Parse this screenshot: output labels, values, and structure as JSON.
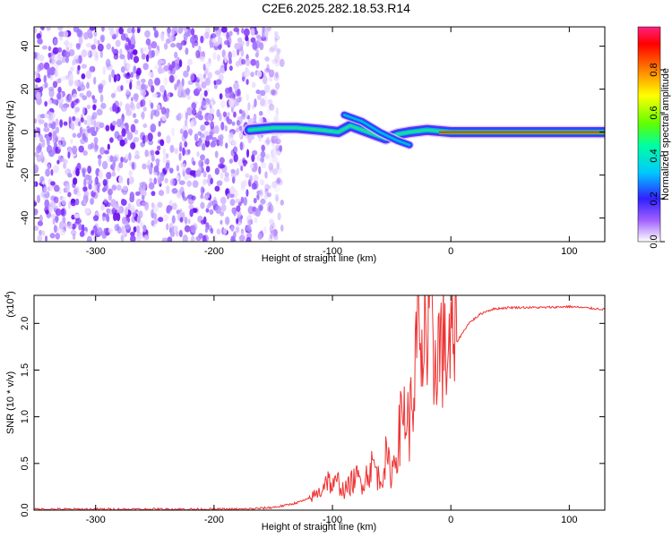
{
  "title": "C2E6.2025.282.18.53.R14",
  "colors": {
    "line": "#ee3333",
    "axis": "#000000",
    "background": "#ffffff"
  },
  "chart_data": [
    {
      "type": "heatmap",
      "name": "spectrogram",
      "xlabel": "Height of straight line (km)",
      "ylabel": "Frequency (Hz)",
      "xlim": [
        -352,
        130
      ],
      "ylim": [
        -51,
        49
      ],
      "xticks": [
        -300,
        -200,
        -100,
        0,
        100
      ],
      "xtick_labels": [
        "-300",
        "-200",
        "-100",
        "0",
        "100"
      ],
      "yticks": [
        -40,
        -20,
        0,
        20,
        40
      ],
      "ytick_labels": [
        "-40",
        "-20",
        "0",
        "20",
        "40"
      ],
      "noise_region_km": [
        -352,
        -150
      ],
      "signal_trace": [
        [
          -170,
          1
        ],
        [
          -150,
          2
        ],
        [
          -130,
          2
        ],
        [
          -110,
          1
        ],
        [
          -95,
          0
        ],
        [
          -85,
          3
        ],
        [
          -70,
          0
        ],
        [
          -55,
          -3
        ],
        [
          -45,
          -1
        ],
        [
          -35,
          0
        ],
        [
          -20,
          1
        ],
        [
          0,
          0
        ],
        [
          50,
          0
        ],
        [
          130,
          0
        ]
      ],
      "branch_trace": [
        [
          -90,
          8
        ],
        [
          -75,
          5
        ],
        [
          -60,
          0
        ],
        [
          -45,
          -4
        ],
        [
          -35,
          -6
        ]
      ],
      "colorbar": {
        "label": "Normalized spectral amplitude",
        "range": [
          0,
          1
        ],
        "ticks": [
          0.0,
          0.2,
          0.4,
          0.6,
          0.8
        ],
        "tick_labels": [
          "0.0",
          "0.2",
          "0.4",
          "0.6",
          "0.8"
        ]
      }
    },
    {
      "type": "line",
      "name": "snr",
      "xlabel": "Height of straight line (km)",
      "ylabel": "SNR (10 * v/v)",
      "multiplier_label": "(x10",
      "multiplier_exponent": "4",
      "multiplier_close": ")",
      "xlim": [
        -352,
        130
      ],
      "ylim": [
        0,
        2.3
      ],
      "xticks": [
        -300,
        -200,
        -100,
        0,
        100
      ],
      "xtick_labels": [
        "-300",
        "-200",
        "-100",
        "0",
        "100"
      ],
      "yticks": [
        0.0,
        0.5,
        1.0,
        1.5,
        2.0
      ],
      "ytick_labels": [
        "0.0",
        "0.5",
        "1.0",
        "1.5",
        "2.0"
      ],
      "x": [
        -352,
        -300,
        -250,
        -200,
        -175,
        -160,
        -150,
        -140,
        -130,
        -120,
        -110,
        -105,
        -100,
        -95,
        -90,
        -85,
        -80,
        -75,
        -70,
        -65,
        -60,
        -55,
        -50,
        -45,
        -40,
        -35,
        -30,
        -27,
        -25,
        -22,
        -20,
        -17,
        -15,
        -12,
        -10,
        -7,
        -5,
        -2,
        0,
        5,
        10,
        15,
        20,
        25,
        30,
        35,
        40,
        50,
        60,
        80,
        100,
        110,
        120,
        130
      ],
      "y": [
        0.01,
        0.01,
        0.01,
        0.01,
        0.01,
        0.02,
        0.03,
        0.05,
        0.08,
        0.12,
        0.2,
        0.35,
        0.25,
        0.3,
        0.2,
        0.28,
        0.35,
        0.3,
        0.4,
        0.5,
        0.3,
        0.55,
        0.4,
        0.7,
        1.1,
        0.9,
        1.5,
        2.0,
        1.2,
        2.3,
        1.6,
        2.25,
        1.4,
        1.9,
        1.7,
        1.85,
        1.6,
        1.8,
        1.7,
        1.8,
        1.9,
        2.0,
        2.05,
        2.1,
        2.13,
        2.15,
        2.16,
        2.17,
        2.17,
        2.17,
        2.18,
        2.17,
        2.16,
        2.15
      ]
    }
  ]
}
